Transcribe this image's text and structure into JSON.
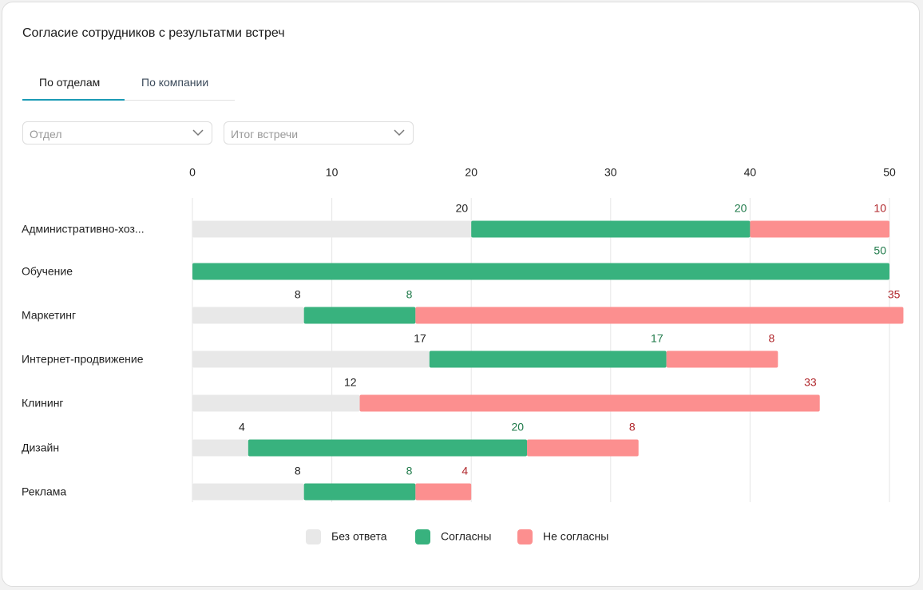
{
  "header": {
    "title": "Согласие сотрудников с результатми встреч"
  },
  "tabs": [
    "По отделам",
    "По компании"
  ],
  "filters": [
    "Отдел",
    "Итог встречи"
  ],
  "chart_data": {
    "type": "stacked-bar-horizontal",
    "categories": [
      "Административно-хоз...",
      "Обучение",
      "Маркетинг",
      "Интернет-продвижение",
      "Клининг",
      "Дизайн",
      "Реклама"
    ],
    "series": [
      {
        "name": "Без ответа",
        "color": "#e8e8e8",
        "label_color": "#1f1f1f",
        "values": [
          20,
          null,
          8,
          17,
          12,
          4,
          8
        ]
      },
      {
        "name": "Согласны",
        "color": "#38b27e",
        "label_color": "#1f7a4a",
        "values": [
          20,
          50,
          8,
          17,
          null,
          20,
          8
        ]
      },
      {
        "name": "Не согласны",
        "color": "#fc8f8f",
        "label_color": "#b0262b",
        "values": [
          10,
          null,
          35,
          8,
          33,
          8,
          4
        ]
      }
    ],
    "xlim": [
      0,
      50
    ],
    "xticks": [
      0,
      10,
      20,
      30,
      40,
      50
    ],
    "grid": true
  }
}
